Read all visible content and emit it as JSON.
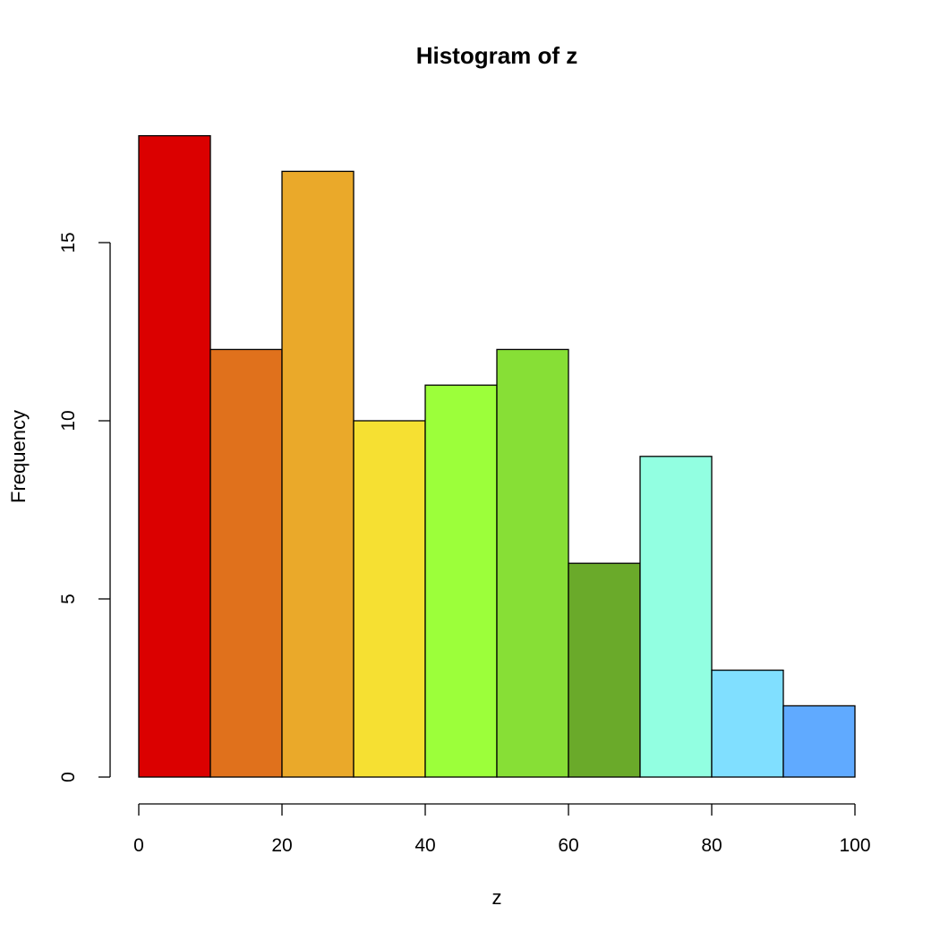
{
  "chart_data": {
    "type": "bar",
    "title": "Histogram of z",
    "xlabel": "z",
    "ylabel": "Frequency",
    "bins": [
      [
        0,
        10
      ],
      [
        10,
        20
      ],
      [
        20,
        30
      ],
      [
        30,
        40
      ],
      [
        40,
        50
      ],
      [
        50,
        60
      ],
      [
        60,
        70
      ],
      [
        70,
        80
      ],
      [
        80,
        90
      ],
      [
        90,
        100
      ]
    ],
    "values": [
      18,
      12,
      17,
      10,
      11,
      12,
      6,
      9,
      3,
      2
    ],
    "colors": [
      "#DB0000",
      "#E0711C",
      "#EAA92A",
      "#F6E032",
      "#9CFF3A",
      "#87DF36",
      "#6AAA2A",
      "#92FFE1",
      "#80DFFF",
      "#60AAFF"
    ],
    "xlim": [
      0,
      100
    ],
    "ylim": [
      0,
      18
    ],
    "xticks": [
      0,
      20,
      40,
      60,
      80,
      100
    ],
    "xtick_labels": [
      "0",
      "20",
      "40",
      "60",
      "80",
      "100"
    ],
    "yticks": [
      0,
      5,
      10,
      15
    ],
    "ytick_labels": [
      "0",
      "5",
      "10",
      "15"
    ],
    "grid": false
  }
}
